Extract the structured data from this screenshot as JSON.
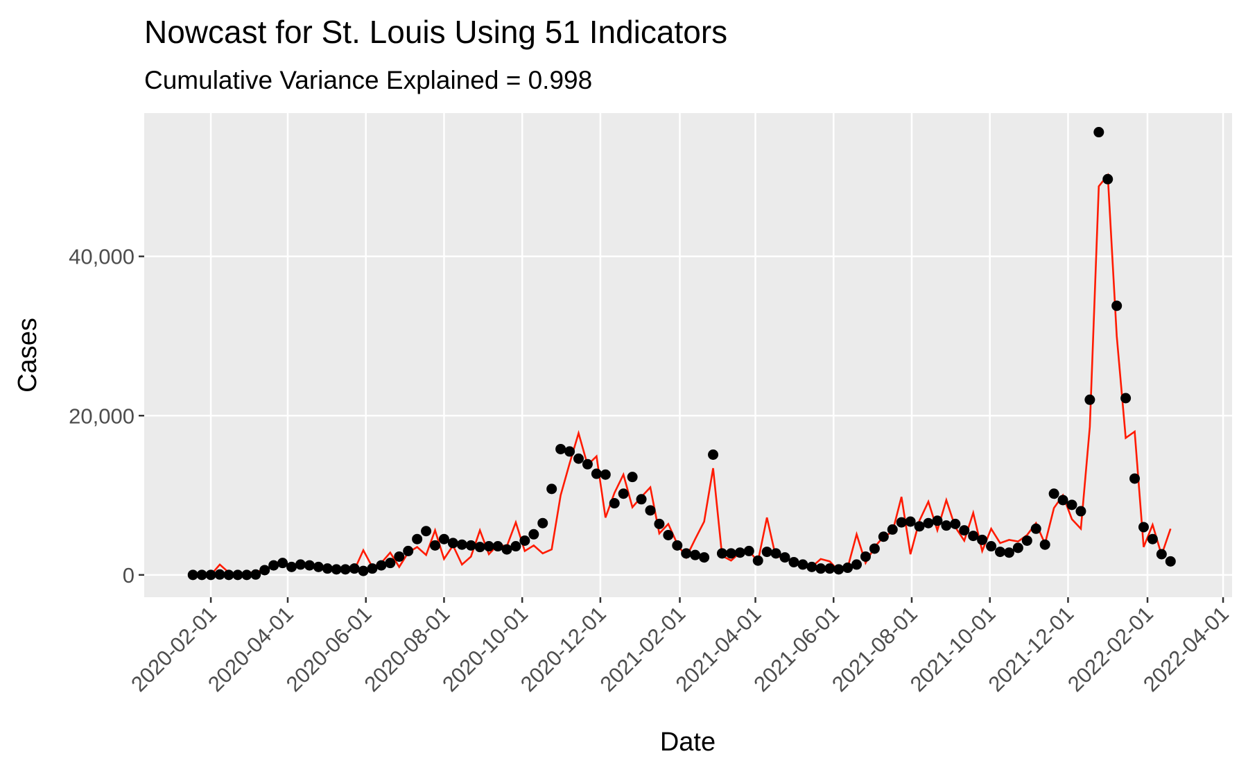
{
  "chart_data": {
    "type": "line",
    "title": "Nowcast for St. Louis Using 51 Indicators",
    "subtitle": "Cumulative Variance Explained = 0.998",
    "x_label": "Date",
    "y_label": "Cases",
    "x": [
      "2020-01-18",
      "2020-01-25",
      "2020-02-01",
      "2020-02-08",
      "2020-02-15",
      "2020-02-22",
      "2020-02-29",
      "2020-03-07",
      "2020-03-14",
      "2020-03-21",
      "2020-03-28",
      "2020-04-04",
      "2020-04-11",
      "2020-04-18",
      "2020-04-25",
      "2020-05-02",
      "2020-05-09",
      "2020-05-16",
      "2020-05-23",
      "2020-05-30",
      "2020-06-06",
      "2020-06-13",
      "2020-06-20",
      "2020-06-27",
      "2020-07-04",
      "2020-07-11",
      "2020-07-18",
      "2020-07-25",
      "2020-08-01",
      "2020-08-08",
      "2020-08-15",
      "2020-08-22",
      "2020-08-29",
      "2020-09-05",
      "2020-09-12",
      "2020-09-19",
      "2020-09-26",
      "2020-10-03",
      "2020-10-10",
      "2020-10-17",
      "2020-10-24",
      "2020-10-31",
      "2020-11-07",
      "2020-11-14",
      "2020-11-21",
      "2020-11-28",
      "2020-12-05",
      "2020-12-12",
      "2020-12-19",
      "2020-12-26",
      "2021-01-02",
      "2021-01-09",
      "2021-01-16",
      "2021-01-23",
      "2021-01-30",
      "2021-02-06",
      "2021-02-13",
      "2021-02-20",
      "2021-02-27",
      "2021-03-06",
      "2021-03-13",
      "2021-03-20",
      "2021-03-27",
      "2021-04-03",
      "2021-04-10",
      "2021-04-17",
      "2021-04-24",
      "2021-05-01",
      "2021-05-08",
      "2021-05-15",
      "2021-05-22",
      "2021-05-29",
      "2021-06-05",
      "2021-06-12",
      "2021-06-19",
      "2021-06-26",
      "2021-07-03",
      "2021-07-10",
      "2021-07-17",
      "2021-07-24",
      "2021-07-31",
      "2021-08-07",
      "2021-08-14",
      "2021-08-21",
      "2021-08-28",
      "2021-09-04",
      "2021-09-11",
      "2021-09-18",
      "2021-09-25",
      "2021-10-02",
      "2021-10-09",
      "2021-10-16",
      "2021-10-23",
      "2021-10-30",
      "2021-11-06",
      "2021-11-13",
      "2021-11-20",
      "2021-11-27",
      "2021-12-04",
      "2021-12-11",
      "2021-12-18",
      "2021-12-25",
      "2022-01-01",
      "2022-01-08",
      "2022-01-15",
      "2022-01-22",
      "2022-01-29",
      "2022-02-05",
      "2022-02-12",
      "2022-02-19"
    ],
    "series": [
      {
        "type": "line",
        "color": "#ff1a00",
        "values": [
          0,
          0,
          0,
          1300,
          300,
          100,
          200,
          400,
          600,
          1300,
          1900,
          900,
          1700,
          1000,
          800,
          900,
          700,
          800,
          600,
          3100,
          1000,
          1500,
          2800,
          1000,
          2800,
          3500,
          2500,
          5600,
          2000,
          3700,
          1300,
          2300,
          5600,
          2600,
          3800,
          3600,
          6600,
          3000,
          3700,
          2700,
          3200,
          10000,
          14000,
          17800,
          13800,
          14900,
          7200,
          10300,
          12600,
          8500,
          9800,
          11000,
          5200,
          6400,
          3900,
          2200,
          4500,
          6700,
          13400,
          2400,
          1800,
          2800,
          3000,
          1700,
          7200,
          2200,
          2400,
          1500,
          1200,
          1000,
          2000,
          1700,
          500,
          900,
          5100,
          1500,
          3500,
          4800,
          5400,
          9800,
          2600,
          6800,
          9200,
          5600,
          9400,
          6000,
          4300,
          7800,
          3000,
          5800,
          4000,
          4400,
          4200,
          5000,
          6500,
          3900,
          8400,
          10000,
          7000,
          5800,
          18600,
          48800,
          50200,
          30000,
          17200,
          18000,
          3500,
          6300,
          2500,
          5800
        ]
      },
      {
        "type": "point",
        "color": "#000000",
        "values": [
          0,
          0,
          0,
          50,
          0,
          0,
          0,
          50,
          600,
          1200,
          1500,
          1000,
          1300,
          1200,
          1000,
          800,
          700,
          700,
          800,
          500,
          800,
          1200,
          1500,
          2300,
          3000,
          4500,
          5500,
          3700,
          4500,
          4000,
          3800,
          3700,
          3500,
          3600,
          3600,
          3200,
          3600,
          4300,
          5100,
          6500,
          10800,
          15800,
          15500,
          14600,
          13900,
          12700,
          12600,
          9000,
          10200,
          12300,
          9500,
          8100,
          6400,
          5000,
          3700,
          2700,
          2500,
          2200,
          15100,
          2700,
          2700,
          2800,
          3000,
          1800,
          2900,
          2700,
          2200,
          1600,
          1300,
          1000,
          800,
          800,
          700,
          900,
          1300,
          2300,
          3300,
          4800,
          5700,
          6600,
          6700,
          6100,
          6500,
          6800,
          6200,
          6400,
          5600,
          4900,
          4400,
          3600,
          2900,
          2800,
          3400,
          4300,
          5800,
          3800,
          10200,
          9400,
          8800,
          8000,
          22000,
          55600,
          49700,
          33800,
          22200,
          12100,
          6000,
          4500,
          2600,
          1700
        ]
      }
    ],
    "xlim": [
      "2019-12-11",
      "2022-04-08"
    ],
    "xticks": [
      "2020-02-01",
      "2020-04-01",
      "2020-06-01",
      "2020-08-01",
      "2020-10-01",
      "2020-12-01",
      "2021-02-01",
      "2021-04-01",
      "2021-06-01",
      "2021-08-01",
      "2021-10-01",
      "2021-12-01",
      "2022-02-01",
      "2022-04-01"
    ],
    "ylim": [
      -2800,
      58000
    ],
    "yticks": [
      0,
      {
        "value": 20000,
        "label": "20,000"
      },
      {
        "value": 40000,
        "label": "40,000"
      }
    ],
    "grid": true,
    "panel_color": "#ebebeb"
  }
}
